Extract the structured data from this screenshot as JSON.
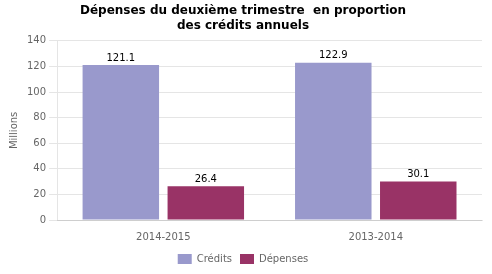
{
  "chart_data": {
    "type": "bar",
    "title": "Dépenses du deuxième trimestre  en proportion\ndes crédits annuels",
    "categories": [
      "2014-2015",
      "2013-2014"
    ],
    "series": [
      {
        "name": "Crédits",
        "color": "#9999cc",
        "values": [
          121.1,
          122.9
        ]
      },
      {
        "name": "Dépenses",
        "color": "#993366",
        "values": [
          26.4,
          30.1
        ]
      }
    ],
    "ylabel": "Millions",
    "ylim": [
      0,
      140
    ],
    "yticks": [
      0,
      20,
      40,
      60,
      80,
      100,
      120,
      140
    ],
    "grid": true,
    "legend": "bottom",
    "data_labels": true
  }
}
